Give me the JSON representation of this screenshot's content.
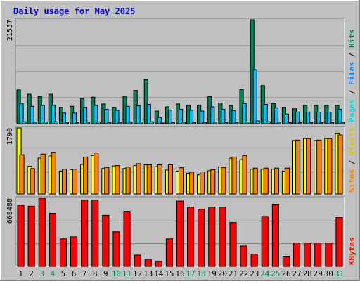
{
  "title": "Daily usage for May 2025",
  "colors": {
    "background": "#c0c0c0",
    "frame_light": "#ffffff",
    "frame_dark": "#808080",
    "title": "#0000cc",
    "hits": "#00805c",
    "files": "#00c0ff",
    "pages": "#00e0e0",
    "visits": "#ffff00",
    "sites": "#ff8000",
    "kbytes": "#ff0000",
    "gridline": "#808080",
    "weekend_label": "#00805c",
    "weekday_label": "#000000"
  },
  "chart_data": [
    {
      "type": "bar",
      "panel": "hits-files-pages",
      "ymax_label": "21557",
      "ylim": [
        0,
        21557
      ],
      "right_labels": [
        "Pages",
        "Files",
        "Hits"
      ],
      "x": [
        1,
        2,
        3,
        4,
        5,
        6,
        7,
        8,
        9,
        10,
        11,
        12,
        13,
        14,
        15,
        16,
        17,
        18,
        19,
        20,
        21,
        22,
        23,
        24,
        25,
        26,
        27,
        28,
        29,
        30,
        31
      ],
      "series": [
        {
          "name": "Hits",
          "values": [
            7000,
            6100,
            5600,
            6100,
            3400,
            3600,
            5200,
            5500,
            4100,
            3400,
            5700,
            6900,
            9100,
            2600,
            3500,
            4100,
            3800,
            3800,
            5600,
            4300,
            3800,
            7100,
            21557,
            7900,
            4200,
            3400,
            3100,
            3800,
            3800,
            3800,
            3800
          ]
        },
        {
          "name": "Files",
          "values": [
            4200,
            3600,
            3800,
            3800,
            2200,
            2200,
            3400,
            3800,
            3000,
            2800,
            3600,
            3700,
            4000,
            1300,
            2800,
            3000,
            2800,
            2600,
            3500,
            3000,
            2700,
            4200,
            11200,
            4000,
            3300,
            2000,
            2400,
            2400,
            2400,
            2400,
            3000
          ]
        },
        {
          "name": "Pages",
          "values": [
            400,
            300,
            350,
            400,
            200,
            200,
            300,
            350,
            250,
            250,
            300,
            350,
            400,
            150,
            250,
            300,
            250,
            250,
            300,
            250,
            250,
            350,
            600,
            400,
            300,
            200,
            200,
            200,
            200,
            200,
            250
          ]
        }
      ]
    },
    {
      "type": "bar",
      "panel": "visits-sites",
      "ymax_label": "1790",
      "ylim": [
        0,
        1790
      ],
      "right_labels": [
        "Sites",
        "Visits"
      ],
      "x": [
        1,
        2,
        3,
        4,
        5,
        6,
        7,
        8,
        9,
        10,
        11,
        12,
        13,
        14,
        15,
        16,
        17,
        18,
        19,
        20,
        21,
        22,
        23,
        24,
        25,
        26,
        27,
        28,
        29,
        30,
        31
      ],
      "series": [
        {
          "name": "Visits",
          "values": [
            1790,
            750,
            970,
            1030,
            620,
            660,
            800,
            1040,
            690,
            760,
            690,
            770,
            790,
            740,
            650,
            620,
            560,
            520,
            630,
            730,
            970,
            930,
            670,
            670,
            670,
            620,
            1450,
            1500,
            1450,
            1500,
            1650
          ]
        },
        {
          "name": "Sites",
          "values": [
            1060,
            690,
            1080,
            1130,
            670,
            670,
            1000,
            1110,
            720,
            770,
            730,
            820,
            790,
            790,
            790,
            710,
            590,
            600,
            660,
            720,
            1000,
            1040,
            700,
            700,
            700,
            700,
            1460,
            1500,
            1460,
            1500,
            1600
          ]
        }
      ]
    },
    {
      "type": "bar",
      "panel": "kbytes",
      "ymax_label": "668488",
      "ylim": [
        0,
        668488
      ],
      "right_labels": [
        "KBytes"
      ],
      "x": [
        1,
        2,
        3,
        4,
        5,
        6,
        7,
        8,
        9,
        10,
        11,
        12,
        13,
        14,
        15,
        16,
        17,
        18,
        19,
        20,
        21,
        22,
        23,
        24,
        25,
        26,
        27,
        28,
        29,
        30,
        31
      ],
      "series": [
        {
          "name": "KBytes",
          "values": [
            600000,
            590000,
            668488,
            520000,
            270000,
            290000,
            650000,
            650000,
            500000,
            340000,
            540000,
            110000,
            70000,
            50000,
            270000,
            640000,
            580000,
            560000,
            580000,
            580000,
            430000,
            200000,
            120000,
            490000,
            610000,
            100000,
            230000,
            230000,
            230000,
            230000,
            480000
          ]
        }
      ]
    }
  ],
  "x_axis": {
    "labels": [
      "1",
      "2",
      "3",
      "4",
      "5",
      "6",
      "7",
      "8",
      "9",
      "10",
      "11",
      "12",
      "13",
      "14",
      "15",
      "16",
      "17",
      "18",
      "19",
      "20",
      "21",
      "22",
      "23",
      "24",
      "25",
      "26",
      "27",
      "28",
      "29",
      "30",
      "31"
    ],
    "weekend_days": [
      3,
      4,
      10,
      11,
      17,
      18,
      24,
      25,
      31
    ]
  }
}
